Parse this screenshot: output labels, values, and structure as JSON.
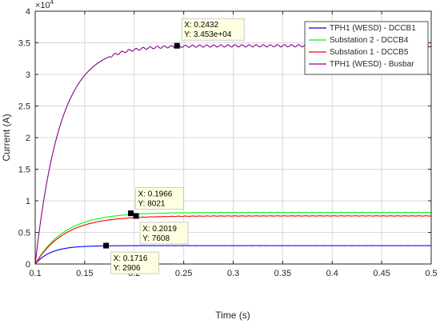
{
  "chart_data": {
    "type": "line",
    "xlabel": "Time (s)",
    "ylabel": "Current (A)",
    "y_multiplier": "×10",
    "y_multiplier_exponent": "4",
    "xlim": [
      0.1,
      0.5
    ],
    "ylim": [
      0,
      40000
    ],
    "x_ticks": [
      0.1,
      0.15,
      0.2,
      0.25,
      0.3,
      0.35,
      0.4,
      0.45,
      0.5
    ],
    "x_tick_labels": [
      "0.1",
      "0.15",
      "0.2",
      "0.25",
      "0.3",
      "0.35",
      "0.4",
      "0.45",
      "0.5"
    ],
    "y_ticks": [
      0,
      5000,
      10000,
      15000,
      20000,
      25000,
      30000,
      35000,
      40000
    ],
    "y_tick_labels": [
      "0",
      "0.5",
      "1",
      "1.5",
      "2",
      "2.5",
      "3",
      "3.5",
      "4"
    ],
    "grid": true,
    "legend_position": "top-right",
    "series": [
      {
        "name": "TPH1 (WESD) - DCCB1",
        "color": "#0000ff",
        "steady": 2906,
        "tau": 0.016,
        "ripple": 5
      },
      {
        "name": "Substation 2 - DCCB4",
        "color": "#00ff00",
        "steady": 8160,
        "tau": 0.03,
        "ripple": 25
      },
      {
        "name": "Substation 1 - DCCB5",
        "color": "#ff0000",
        "steady": 7608,
        "tau": 0.03,
        "ripple": 25
      },
      {
        "name": "TPH1 (WESD) - Busbar",
        "color": "#8b008b",
        "steady": 34530,
        "tau": 0.025,
        "ripple": 180
      }
    ],
    "datatips": [
      {
        "x": 0.2432,
        "y": 34530,
        "x_text": "X: 0.2432",
        "y_text": "Y: 3.453e+04"
      },
      {
        "x": 0.1966,
        "y": 8021,
        "x_text": "X: 0.1966",
        "y_text": "Y: 8021"
      },
      {
        "x": 0.2019,
        "y": 7608,
        "x_text": "X: 0.2019",
        "y_text": "Y: 7608"
      },
      {
        "x": 0.1716,
        "y": 2906,
        "x_text": "X: 0.1716",
        "y_text": "Y: 2906"
      }
    ]
  }
}
